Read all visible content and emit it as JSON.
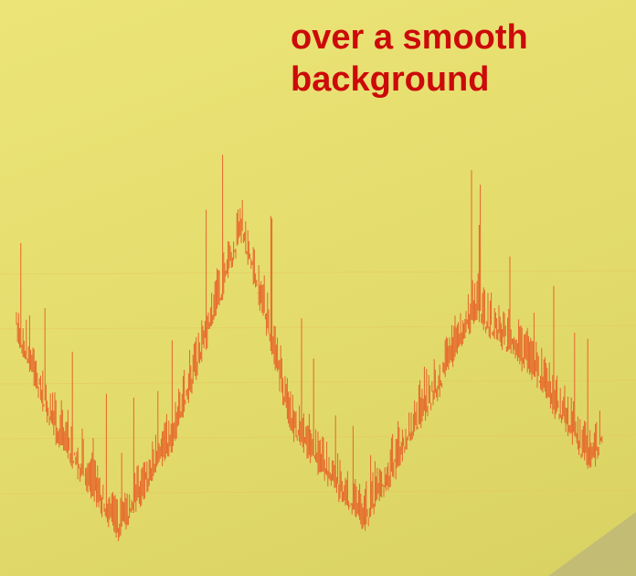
{
  "caption": "over a smooth background"
}
